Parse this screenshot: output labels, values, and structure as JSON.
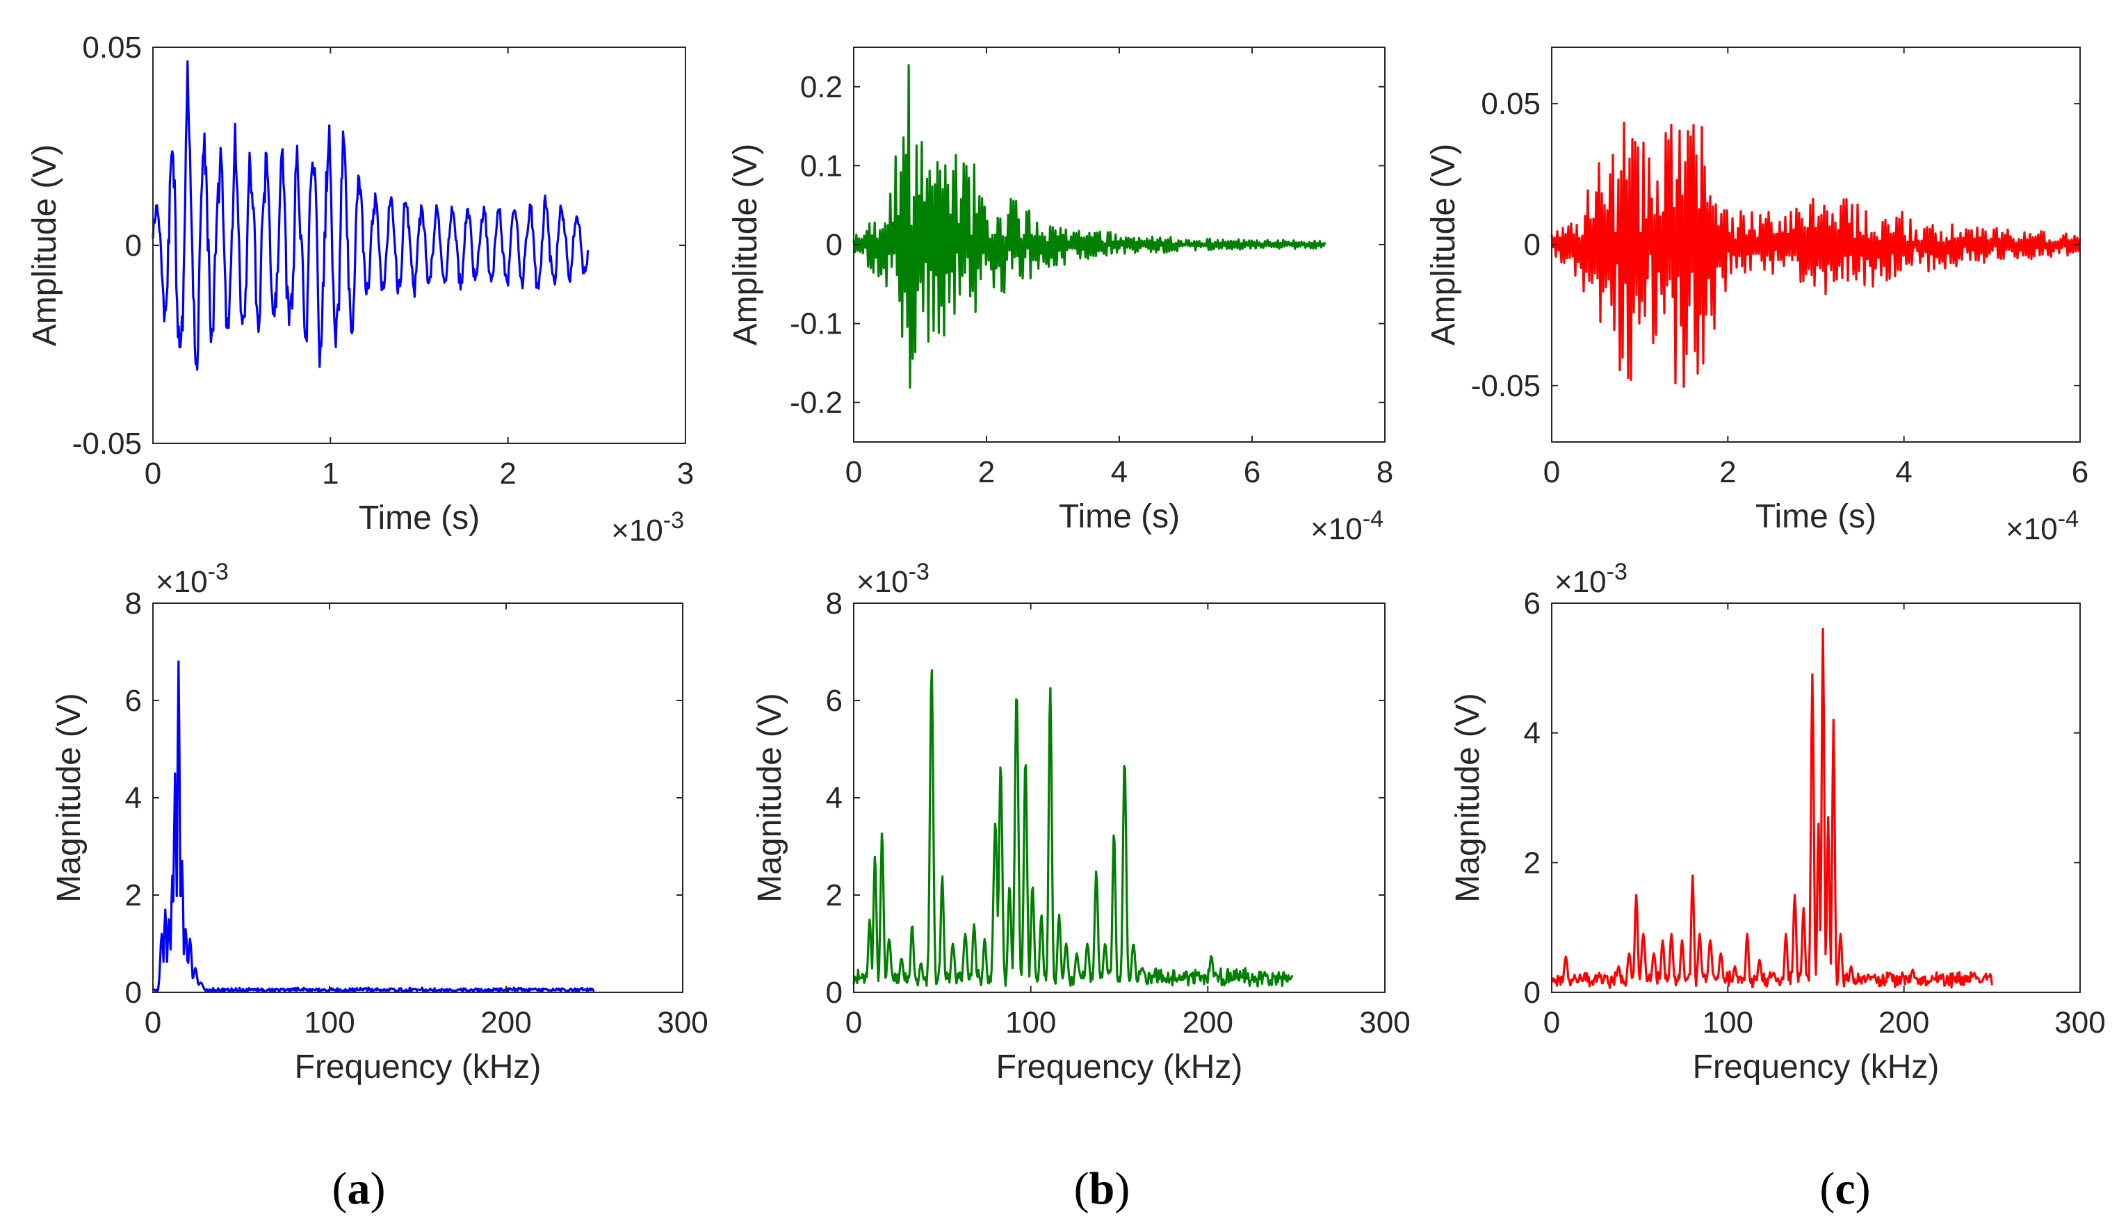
{
  "chart_data": [
    {
      "type": "line",
      "name": "a-time",
      "color": "#0000ff",
      "xlabel": "Time (s)",
      "ylabel": "Amplitude (V)",
      "xlim": [
        0,
        3
      ],
      "ylim": [
        -0.05,
        0.05
      ],
      "xticks": [
        0,
        1,
        2,
        3
      ],
      "xtick_labels": [
        "0",
        "1",
        "2",
        "3"
      ],
      "yticks": [
        -0.05,
        0,
        0.05
      ],
      "ytick_labels": [
        "-0.05",
        "0",
        "0.05"
      ],
      "x_exponent": {
        "base": "×10",
        "power": "-3"
      },
      "y_exponent": null,
      "signal": {
        "kind": "osc",
        "x_end": 2.45,
        "n": 540,
        "cycles": 28,
        "seed": 11,
        "env": [
          [
            0,
            0.01
          ],
          [
            0.1,
            0.03
          ],
          [
            0.2,
            0.047
          ],
          [
            0.3,
            0.032
          ],
          [
            0.55,
            0.028
          ],
          [
            0.8,
            0.026
          ],
          [
            1.0,
            0.034
          ],
          [
            1.12,
            0.03
          ],
          [
            1.2,
            0.016
          ],
          [
            1.6,
            0.012
          ],
          [
            2.0,
            0.012
          ],
          [
            2.2,
            0.014
          ],
          [
            2.45,
            0.008
          ]
        ]
      }
    },
    {
      "type": "line",
      "name": "b-time",
      "color": "#008000",
      "xlabel": "Time (s)",
      "ylabel": "Amplitude (V)",
      "xlim": [
        0,
        8
      ],
      "ylim": [
        -0.25,
        0.25
      ],
      "xticks": [
        0,
        2,
        4,
        6,
        8
      ],
      "xtick_labels": [
        "0",
        "2",
        "4",
        "6",
        "8"
      ],
      "yticks": [
        -0.2,
        -0.1,
        0,
        0.1,
        0.2
      ],
      "ytick_labels": [
        "-0.2",
        "-0.1",
        "0",
        "0.1",
        "0.2"
      ],
      "x_exponent": {
        "base": "×10",
        "power": "-4"
      },
      "y_exponent": null,
      "signal": {
        "kind": "noise",
        "x_end": 7.1,
        "n": 360,
        "seed": 23,
        "env": [
          [
            0,
            0.012
          ],
          [
            0.3,
            0.04
          ],
          [
            0.6,
            0.1
          ],
          [
            0.85,
            0.24
          ],
          [
            1.1,
            0.13
          ],
          [
            1.6,
            0.12
          ],
          [
            2.2,
            0.07
          ],
          [
            3.0,
            0.03
          ],
          [
            4.0,
            0.015
          ],
          [
            5.0,
            0.008
          ],
          [
            7.1,
            0.005
          ]
        ]
      }
    },
    {
      "type": "line",
      "name": "c-time",
      "color": "#ff0000",
      "xlabel": "Time (s)",
      "ylabel": "Amplitude (V)",
      "xlim": [
        0,
        6
      ],
      "ylim": [
        -0.07,
        0.07
      ],
      "xticks": [
        0,
        2,
        4,
        6
      ],
      "xtick_labels": [
        "0",
        "2",
        "4",
        "6"
      ],
      "yticks": [
        -0.05,
        0,
        0.05
      ],
      "ytick_labels": [
        "-0.05",
        "0",
        "0.05"
      ],
      "x_exponent": {
        "base": "×10",
        "power": "-4"
      },
      "y_exponent": null,
      "signal": {
        "kind": "noise",
        "x_end": 6.0,
        "n": 380,
        "seed": 37,
        "env": [
          [
            0,
            0.008
          ],
          [
            0.3,
            0.015
          ],
          [
            0.7,
            0.045
          ],
          [
            0.9,
            0.05
          ],
          [
            1.2,
            0.035
          ],
          [
            1.45,
            0.055
          ],
          [
            1.7,
            0.045
          ],
          [
            1.9,
            0.03
          ],
          [
            2.0,
            0.012
          ],
          [
            2.6,
            0.012
          ],
          [
            3.1,
            0.018
          ],
          [
            3.6,
            0.016
          ],
          [
            4.2,
            0.01
          ],
          [
            5.0,
            0.006
          ],
          [
            6.0,
            0.004
          ]
        ]
      }
    },
    {
      "type": "line",
      "name": "a-spectrum",
      "color": "#0000ff",
      "xlabel": "Frequency (kHz)",
      "ylabel": "Magnitude (V)",
      "xlim": [
        0,
        300
      ],
      "ylim": [
        0,
        8
      ],
      "xticks": [
        0,
        100,
        200,
        300
      ],
      "xtick_labels": [
        "0",
        "100",
        "200",
        "300"
      ],
      "yticks": [
        0,
        2,
        4,
        6,
        8
      ],
      "ytick_labels": [
        "0",
        "2",
        "4",
        "6",
        "8"
      ],
      "x_exponent": null,
      "y_exponent": {
        "base": "×10",
        "power": "-3"
      },
      "signal": {
        "kind": "spectrum",
        "x_end": 250,
        "n": 500,
        "seed": 5,
        "base": 0.05,
        "noise": 0.06,
        "peaks": [
          [
            5,
            1.2,
            1.2
          ],
          [
            7,
            1.7,
            1.0
          ],
          [
            9,
            1.5,
            1.0
          ],
          [
            11,
            2.4,
            1.0
          ],
          [
            12.5,
            4.5,
            0.9
          ],
          [
            14.5,
            6.8,
            0.9
          ],
          [
            16.5,
            2.7,
            0.9
          ],
          [
            18.5,
            1.3,
            1.2
          ],
          [
            21,
            1.1,
            1.3
          ],
          [
            24,
            0.5,
            1.5
          ],
          [
            27,
            0.2,
            2.0
          ]
        ]
      }
    },
    {
      "type": "line",
      "name": "b-spectrum",
      "color": "#008000",
      "xlabel": "Frequency (kHz)",
      "ylabel": "Magnitude (V)",
      "xlim": [
        0,
        300
      ],
      "ylim": [
        0,
        8
      ],
      "xticks": [
        0,
        100,
        200,
        300
      ],
      "xtick_labels": [
        "0",
        "100",
        "200",
        "300"
      ],
      "yticks": [
        0,
        2,
        4,
        6,
        8
      ],
      "ytick_labels": [
        "0",
        "2",
        "4",
        "6",
        "8"
      ],
      "x_exponent": null,
      "y_exponent": {
        "base": "×10",
        "power": "-3"
      },
      "signal": {
        "kind": "spectrum",
        "x_end": 248,
        "n": 500,
        "seed": 9,
        "base": 0.3,
        "noise": 0.18,
        "peaks": [
          [
            4,
            0.3,
            3
          ],
          [
            9,
            1.5,
            1.2
          ],
          [
            12,
            2.8,
            1.2
          ],
          [
            16,
            3.3,
            1.2
          ],
          [
            20,
            1.1,
            1.5
          ],
          [
            27,
            0.7,
            1.5
          ],
          [
            33,
            1.4,
            1.2
          ],
          [
            38,
            0.6,
            1.5
          ],
          [
            44,
            6.7,
            1.3
          ],
          [
            50,
            2.4,
            1.2
          ],
          [
            56,
            1.0,
            1.5
          ],
          [
            63,
            1.2,
            1.5
          ],
          [
            68,
            1.4,
            1.3
          ],
          [
            74,
            1.1,
            1.3
          ],
          [
            80,
            3.5,
            1.5
          ],
          [
            83,
            4.7,
            1.3
          ],
          [
            88,
            2.2,
            1.3
          ],
          [
            92,
            6.2,
            1.4
          ],
          [
            97,
            4.8,
            1.3
          ],
          [
            101,
            2.2,
            1.3
          ],
          [
            106,
            1.6,
            1.3
          ],
          [
            111,
            6.3,
            1.2
          ],
          [
            116,
            1.6,
            1.3
          ],
          [
            120,
            1.0,
            1.5
          ],
          [
            126,
            0.8,
            1.5
          ],
          [
            132,
            1.0,
            1.5
          ],
          [
            137,
            2.5,
            1.3
          ],
          [
            142,
            1.0,
            1.5
          ],
          [
            147,
            3.3,
            1.2
          ],
          [
            153,
            4.8,
            1.3
          ],
          [
            158,
            1.0,
            1.5
          ],
          [
            163,
            0.5,
            2
          ],
          [
            170,
            0.3,
            2
          ],
          [
            185,
            0.25,
            2
          ],
          [
            202,
            0.75,
            1.5
          ],
          [
            215,
            0.2,
            2
          ],
          [
            232,
            0.15,
            2
          ]
        ]
      }
    },
    {
      "type": "line",
      "name": "c-spectrum",
      "color": "#ff0000",
      "xlabel": "Frequency (kHz)",
      "ylabel": "Magnitude (V)",
      "xlim": [
        0,
        300
      ],
      "ylim": [
        0,
        6
      ],
      "xticks": [
        0,
        100,
        200,
        300
      ],
      "xtick_labels": [
        "0",
        "100",
        "200",
        "300"
      ],
      "yticks": [
        0,
        2,
        4,
        6
      ],
      "ytick_labels": [
        "0",
        "2",
        "4",
        "6"
      ],
      "x_exponent": null,
      "y_exponent": {
        "base": "×10",
        "power": "-3"
      },
      "signal": {
        "kind": "spectrum",
        "x_end": 250,
        "n": 500,
        "seed": 17,
        "base": 0.2,
        "noise": 0.12,
        "peaks": [
          [
            8,
            0.55,
            1.5
          ],
          [
            16,
            0.2,
            2
          ],
          [
            27,
            0.25,
            2
          ],
          [
            38,
            0.4,
            1.5
          ],
          [
            44,
            0.6,
            1.5
          ],
          [
            48,
            1.5,
            1.2
          ],
          [
            52,
            0.9,
            1.5
          ],
          [
            58,
            0.6,
            1.5
          ],
          [
            63,
            0.8,
            1.3
          ],
          [
            68,
            0.9,
            1.3
          ],
          [
            74,
            0.8,
            1.3
          ],
          [
            80,
            1.8,
            1.1
          ],
          [
            84,
            0.9,
            1.3
          ],
          [
            90,
            0.8,
            1.5
          ],
          [
            96,
            0.6,
            1.5
          ],
          [
            104,
            0.4,
            1.5
          ],
          [
            111,
            0.9,
            1.2
          ],
          [
            118,
            0.5,
            1.5
          ],
          [
            126,
            0.3,
            2
          ],
          [
            133,
            0.9,
            1.2
          ],
          [
            138,
            1.5,
            1.2
          ],
          [
            143,
            1.3,
            1.2
          ],
          [
            148,
            4.9,
            1.1
          ],
          [
            151.5,
            2.6,
            1.0
          ],
          [
            154,
            5.6,
            1.0
          ],
          [
            157,
            2.7,
            1.0
          ],
          [
            160,
            4.2,
            1.0
          ],
          [
            164,
            0.9,
            1.2
          ],
          [
            170,
            0.4,
            1.5
          ],
          [
            180,
            0.25,
            2
          ],
          [
            192,
            0.3,
            2
          ],
          [
            205,
            0.35,
            1.5
          ],
          [
            218,
            0.2,
            2
          ],
          [
            240,
            0.2,
            2
          ],
          [
            248,
            0.25,
            2
          ]
        ]
      }
    }
  ],
  "captions": [
    {
      "open": "(",
      "letter": "a",
      "close": ")"
    },
    {
      "open": "(",
      "letter": "b",
      "close": ")"
    },
    {
      "open": "(",
      "letter": "c",
      "close": ")"
    }
  ]
}
